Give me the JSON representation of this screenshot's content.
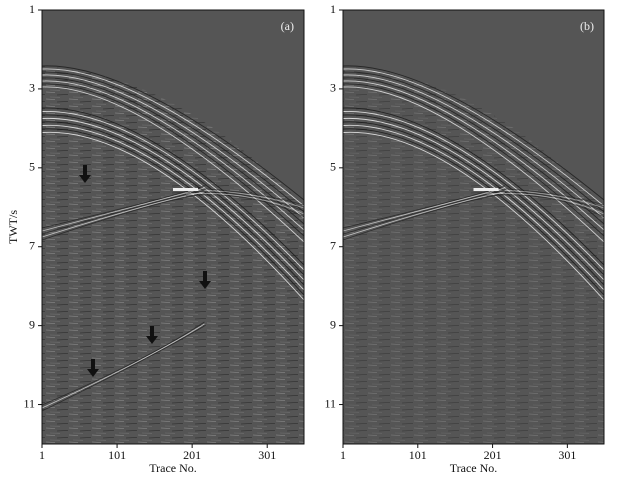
{
  "chart_data": [
    {
      "type": "image",
      "panel_label": "(a)",
      "ylabel": "TWT/s",
      "xlabel": "Trace No.",
      "xlim": [
        1,
        350
      ],
      "xticks": [
        1,
        101,
        201,
        301
      ],
      "ylim": [
        1,
        12
      ],
      "yticks": [
        1,
        3,
        5,
        7,
        9,
        11
      ],
      "arrows": true
    },
    {
      "type": "image",
      "panel_label": "(b)",
      "xlabel": "Trace No.",
      "xlim": [
        1,
        350
      ],
      "xticks": [
        1,
        101,
        201,
        301
      ],
      "ylim": [
        1,
        12
      ],
      "yticks": [
        1,
        3,
        5,
        7,
        9,
        11
      ],
      "arrows": false
    }
  ]
}
